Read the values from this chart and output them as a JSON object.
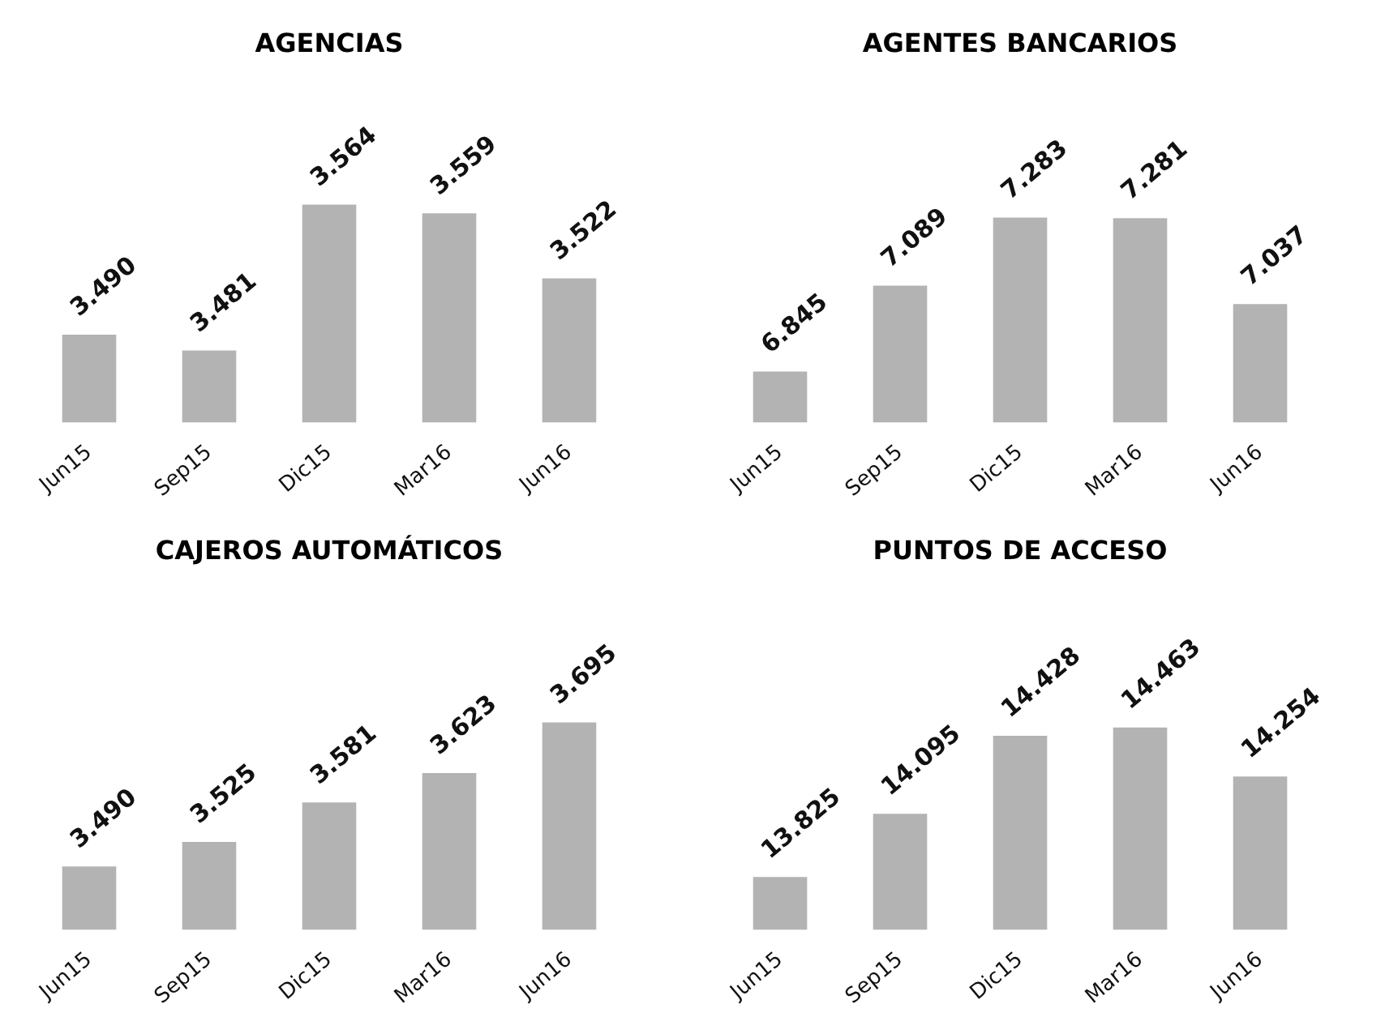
{
  "chart_data": [
    {
      "type": "bar",
      "title": "AGENCIAS",
      "categories": [
        "Jun15",
        "Sep15",
        "Dic15",
        "Mar16",
        "Jun16"
      ],
      "values": [
        3490,
        3481,
        3564,
        3559,
        3522
      ],
      "value_labels": [
        "3.490",
        "3.481",
        "3.564",
        "3.559",
        "3.522"
      ],
      "color": "#b3b3b3",
      "tick_labels": "x"
    },
    {
      "type": "bar",
      "title": "AGENTES BANCARIOS",
      "categories": [
        "Jun15",
        "Sep15",
        "Dic15",
        "Mar16",
        "Jun16"
      ],
      "values": [
        6845,
        7089,
        7283,
        7281,
        7037
      ],
      "value_labels": [
        "6.845",
        "7.089",
        "7.283",
        "7.281",
        "7.037"
      ],
      "color": "#b3b3b3",
      "tick_labels": "x"
    },
    {
      "type": "bar",
      "title": "CAJEROS AUTOMÁTICOS",
      "categories": [
        "Jun15",
        "Sep15",
        "Dic15",
        "Mar16",
        "Jun16"
      ],
      "values": [
        3490,
        3525,
        3581,
        3623,
        3695
      ],
      "value_labels": [
        "3.490",
        "3.525",
        "3.581",
        "3.623",
        "3.695"
      ],
      "color": "#b3b3b3",
      "tick_labels": "x"
    },
    {
      "type": "bar",
      "title": "PUNTOS DE ACCESO",
      "categories": [
        "Jun15",
        "Sep15",
        "Dic15",
        "Mar16",
        "Jun16"
      ],
      "values": [
        13825,
        14095,
        14428,
        14463,
        14254
      ],
      "value_labels": [
        "13.825",
        "14.095",
        "14.428",
        "14.463",
        "14.254"
      ],
      "color": "#b3b3b3",
      "tick_labels": "x"
    }
  ]
}
